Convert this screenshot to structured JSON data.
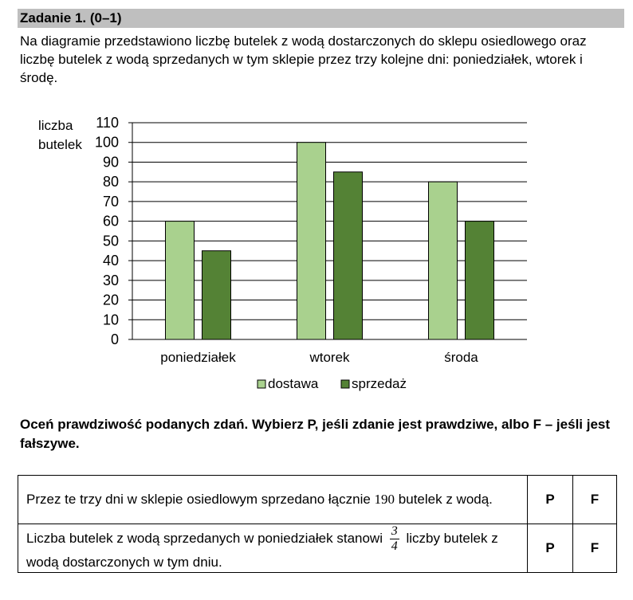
{
  "task": {
    "title": "Zadanie 1. (0–1)",
    "intro": "Na diagramie przedstawiono liczbę butelek z wodą dostarczonych do sklepu osiedlowego oraz liczbę butelek z wodą sprzedanych w tym sklepie przez trzy kolejne dni: poniedziałek, wtorek i środę."
  },
  "chart_data": {
    "type": "bar",
    "categories": [
      "poniedziałek",
      "wtorek",
      "środa"
    ],
    "series": [
      {
        "name": "dostawa",
        "values": [
          60,
          100,
          80
        ],
        "color": "#a9d18e"
      },
      {
        "name": "sprzedaż",
        "values": [
          45,
          85,
          60
        ],
        "color": "#548235"
      }
    ],
    "ylabel_lines": [
      "liczba",
      "butelek"
    ],
    "ylim": [
      0,
      110
    ],
    "yticks": [
      0,
      10,
      20,
      30,
      40,
      50,
      60,
      70,
      80,
      90,
      100,
      110
    ],
    "grid": true,
    "legend_position": "bottom"
  },
  "instruction": "Oceń prawdziwość podanych zdań. Wybierz P, jeśli zdanie jest prawdziwe, albo F – jeśli jest fałszywe.",
  "statements": [
    {
      "text_before": "Przez te trzy dni w sklepie osiedlowym sprzedano łącznie",
      "number": "190",
      "text_after": "butelek z wodą.",
      "option_p": "P",
      "option_f": "F"
    },
    {
      "text_before": "Liczba butelek z wodą sprzedanych w poniedziałek stanowi",
      "fraction_num": "3",
      "fraction_den": "4",
      "text_after": "liczby butelek z wodą dostarczonych w tym dniu.",
      "option_p": "P",
      "option_f": "F"
    }
  ]
}
